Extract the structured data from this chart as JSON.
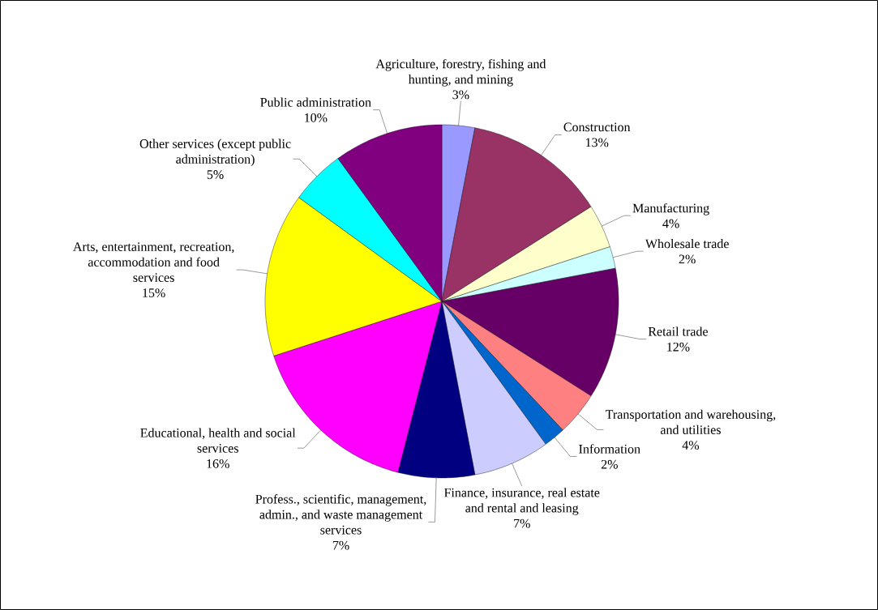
{
  "chart_data": {
    "type": "pie",
    "categories": [
      "Agriculture, forestry, fishing and hunting, and mining",
      "Construction",
      "Manufacturing",
      "Wholesale trade",
      "Retail trade",
      "Transportation and warehousing, and utilities",
      "Information",
      "Finance, insurance, real estate and rental and leasing",
      "Profess., scientific, management, admin., and waste management services",
      "Educational, health and social services",
      "Arts, entertainment, recreation, accommodation and food services",
      "Other services (except public administration)",
      "Public administration"
    ],
    "values": [
      3,
      13,
      4,
      2,
      12,
      4,
      2,
      7,
      7,
      16,
      15,
      5,
      10
    ],
    "value_labels": [
      "3%",
      "13%",
      "4%",
      "2%",
      "12%",
      "4%",
      "2%",
      "7%",
      "7%",
      "16%",
      "15%",
      "5%",
      "10%"
    ],
    "colors": [
      "#9999ff",
      "#993366",
      "#ffffcc",
      "#ccffff",
      "#660066",
      "#ff8080",
      "#0066cc",
      "#ccccff",
      "#000080",
      "#ff00ff",
      "#ffff00",
      "#00ffff",
      "#800080"
    ]
  }
}
